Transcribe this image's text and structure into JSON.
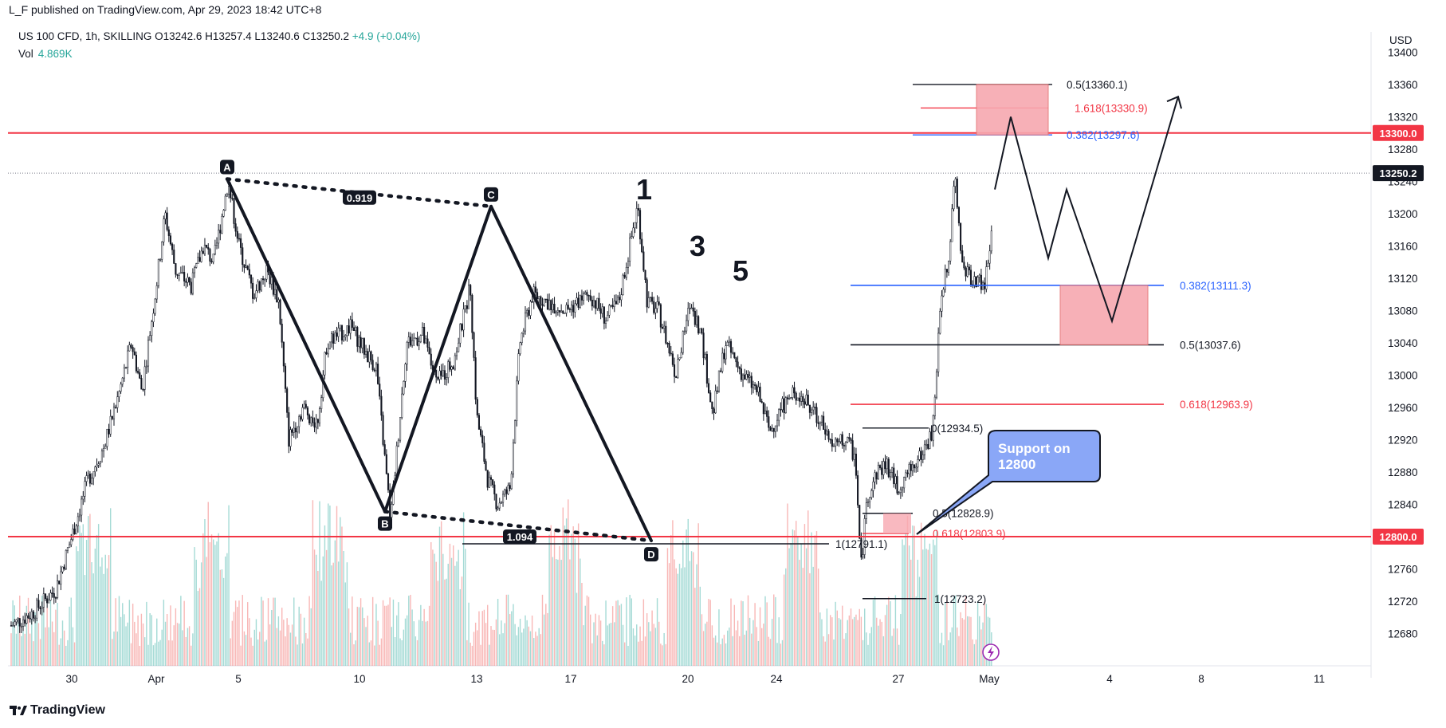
{
  "header": {
    "published": "L_F published on TradingView.com, Apr 29, 2023 18:42 UTC+8",
    "symbol_line": "US 100 CFD, 1h, SKILLING  O13242.6  H13257.4  L13240.6  C13250.2",
    "change": "+4.9 (+0.04%)",
    "vol_label": "Vol",
    "vol_value": "4.869K",
    "currency": "USD"
  },
  "footer": {
    "brand": "TradingView"
  },
  "colors": {
    "red_line": "#f23645",
    "blue_line": "#2962ff",
    "bull": "#26a69a",
    "bear": "#ef5350",
    "callout": "#8aa7f7"
  },
  "chart_data": {
    "type": "candlestick",
    "ylim": [
      12650,
      13420
    ],
    "y_ticks": [
      12680,
      12720,
      12760,
      12800,
      12840,
      12880,
      12920,
      12960,
      13000,
      13040,
      13080,
      13120,
      13160,
      13200,
      13240,
      13280,
      13320,
      13360,
      13400
    ],
    "x_ticks": [
      "30",
      "Apr",
      "5",
      "10",
      "13",
      "17",
      "20",
      "24",
      "27",
      "May",
      "4",
      "8",
      "11"
    ],
    "last_price_label": "13250.2",
    "horizontal_levels": [
      {
        "label": "13300.0",
        "value": 13300.0
      },
      {
        "label": "12800.0",
        "value": 12800.0
      }
    ],
    "fib_upper": [
      {
        "label": "0.5(13360.1)",
        "value": 13360.1
      },
      {
        "label": "1.618(13330.9)",
        "value": 13330.9
      },
      {
        "label": "0.382(13297.6)",
        "value": 13297.6
      }
    ],
    "fib_right": [
      {
        "label": "0.382(13111.3)",
        "value": 13111.3
      },
      {
        "label": "0.5(13037.6)",
        "value": 13037.6
      },
      {
        "label": "0.618(12963.9)",
        "value": 12963.9
      }
    ],
    "fib_lower": [
      {
        "label": "0(12934.5)",
        "value": 12934.5
      },
      {
        "label": "0.5(12828.9)",
        "value": 12828.9
      },
      {
        "label": "0.618(12803.9)",
        "value": 12803.9
      },
      {
        "label": "1(12791.1)",
        "value": 12791.1
      },
      {
        "label": "1(12723.2)",
        "value": 12723.2
      }
    ],
    "pattern_points": [
      "A",
      "B",
      "C",
      "D"
    ],
    "pattern_ratios": [
      "0.919",
      "1.094"
    ],
    "wave_labels": [
      "1",
      "3",
      "5"
    ],
    "annotation": "Support on 12800"
  }
}
